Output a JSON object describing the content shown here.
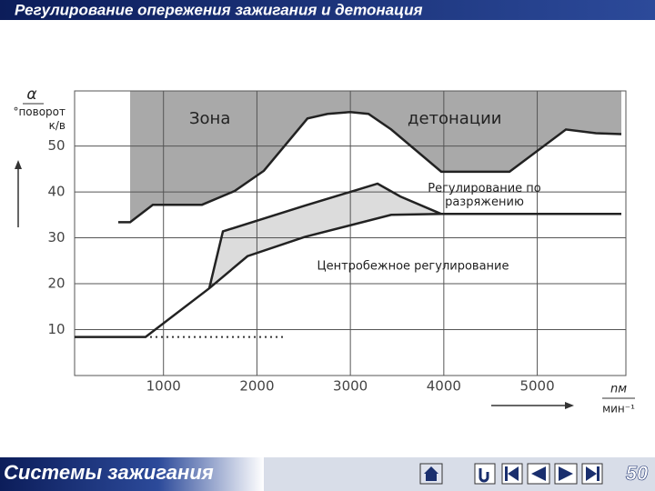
{
  "chart_data": {
    "type": "line",
    "title": "Регулирование опережения зажигания и детонация",
    "y_symbol": "α",
    "ylabel": "°поворот к/в",
    "x_symbol": "nм",
    "xlabel": "мин⁻¹",
    "xlim": [
      0,
      5900
    ],
    "ylim": [
      0,
      62
    ],
    "xticks": [
      1000,
      2000,
      3000,
      4000,
      5000
    ],
    "yticks": [
      10,
      20,
      30,
      40,
      50
    ],
    "grid": true,
    "annotations": [
      "Зона",
      "детонации",
      "Регулирование по разряжению",
      "Центробежное регулирование"
    ],
    "series": [
      {
        "color": "#222222",
        "fill": "#a9a9a9",
        "x": [
          516,
          643,
          886,
          1412,
          1762,
          2074,
          2541,
          2756,
          2999,
          3194,
          3437,
          3973,
          4703,
          5307,
          5628,
          5900
        ],
        "values": [
          33.4,
          33.4,
          37.2,
          37.2,
          40.2,
          44.6,
          56,
          57,
          57.4,
          57,
          53.6,
          44.4,
          44.4,
          53.6,
          52.8,
          52.6
        ]
      },
      {
        "color": "#222222",
        "x": [
          49,
          808,
          1490,
          1899,
          2512,
          3437,
          3973,
          5900
        ],
        "values": [
          8.4,
          8.4,
          19,
          26,
          30.2,
          35,
          35.2,
          35.2
        ]
      },
      {
        "color": "#222222",
        "fill": "#dcdcdc",
        "x": [
          1490,
          1636,
          2512,
          3291,
          3535,
          3973
        ],
        "values": [
          19,
          31.4,
          37,
          41.8,
          39,
          35.2
        ]
      },
      {
        "color": "#333333",
        "dashed": true,
        "x": [
          857,
          2288
        ],
        "values": [
          8.4,
          8.4
        ]
      }
    ]
  },
  "footer": {
    "text": "Системы зажигания",
    "page": "50"
  }
}
